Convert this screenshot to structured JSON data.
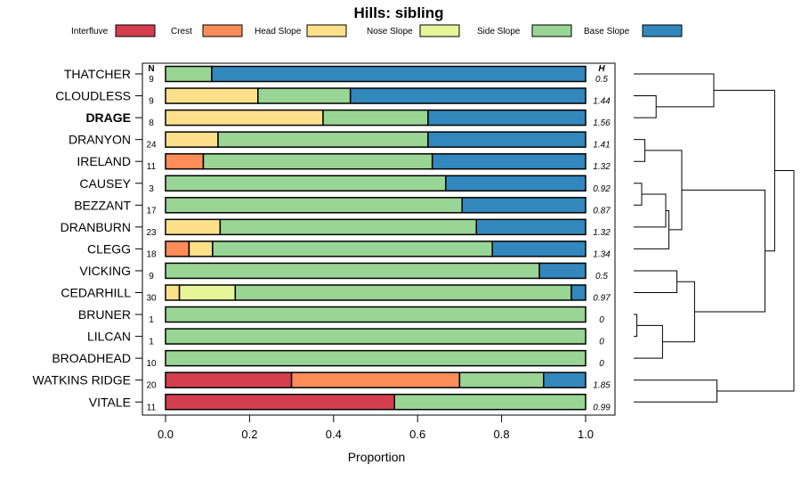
{
  "chart_data": {
    "type": "bar",
    "orientation": "horizontal",
    "stacked": true,
    "title": "Hills: sibling",
    "xlabel": "Proportion",
    "xlim": [
      0,
      1
    ],
    "xticks": [
      "0.0",
      "0.2",
      "0.4",
      "0.6",
      "0.8",
      "1.0"
    ],
    "n_header": "N",
    "h_header": "H",
    "legend": [
      {
        "name": "Interfluve",
        "color": "#d53e4f"
      },
      {
        "name": "Crest",
        "color": "#fc8d59"
      },
      {
        "name": "Head Slope",
        "color": "#fee08b"
      },
      {
        "name": "Nose Slope",
        "color": "#e6f598"
      },
      {
        "name": "Side Slope",
        "color": "#99d594"
      },
      {
        "name": "Base Slope",
        "color": "#3288bd"
      }
    ],
    "categories": [
      {
        "name": "THATCHER",
        "n": "9",
        "h": "0.5",
        "bold": false,
        "values": [
          0,
          0,
          0,
          0,
          0.11,
          0.89
        ]
      },
      {
        "name": "CLOUDLESS",
        "n": "9",
        "h": "1.44",
        "bold": false,
        "values": [
          0,
          0,
          0.22,
          0,
          0.22,
          0.56
        ]
      },
      {
        "name": "DRAGE",
        "n": "8",
        "h": "1.56",
        "bold": true,
        "values": [
          0,
          0,
          0.375,
          0,
          0.25,
          0.375
        ]
      },
      {
        "name": "DRANYON",
        "n": "24",
        "h": "1.41",
        "bold": false,
        "values": [
          0,
          0,
          0.125,
          0,
          0.5,
          0.375
        ]
      },
      {
        "name": "IRELAND",
        "n": "11",
        "h": "1.32",
        "bold": false,
        "values": [
          0,
          0.09,
          0,
          0,
          0.545,
          0.365
        ]
      },
      {
        "name": "CAUSEY",
        "n": "3",
        "h": "0.92",
        "bold": false,
        "values": [
          0,
          0,
          0,
          0,
          0.667,
          0.333
        ]
      },
      {
        "name": "BEZZANT",
        "n": "17",
        "h": "0.87",
        "bold": false,
        "values": [
          0,
          0,
          0,
          0,
          0.706,
          0.294
        ]
      },
      {
        "name": "DRANBURN",
        "n": "23",
        "h": "1.32",
        "bold": false,
        "values": [
          0,
          0,
          0.13,
          0,
          0.61,
          0.26
        ]
      },
      {
        "name": "CLEGG",
        "n": "18",
        "h": "1.34",
        "bold": false,
        "values": [
          0,
          0.056,
          0.056,
          0,
          0.666,
          0.222
        ]
      },
      {
        "name": "VICKING",
        "n": "9",
        "h": "0.5",
        "bold": false,
        "values": [
          0,
          0,
          0,
          0,
          0.89,
          0.11
        ]
      },
      {
        "name": "CEDARHILL",
        "n": "30",
        "h": "0.97",
        "bold": false,
        "values": [
          0,
          0,
          0.033,
          0.133,
          0.8,
          0.034
        ]
      },
      {
        "name": "BRUNER",
        "n": "1",
        "h": "0",
        "bold": false,
        "values": [
          0,
          0,
          0,
          0,
          1,
          0
        ]
      },
      {
        "name": "LILCAN",
        "n": "1",
        "h": "0",
        "bold": false,
        "values": [
          0,
          0,
          0,
          0,
          1,
          0
        ]
      },
      {
        "name": "BROADHEAD",
        "n": "10",
        "h": "0",
        "bold": false,
        "values": [
          0,
          0,
          0,
          0,
          1,
          0
        ]
      },
      {
        "name": "WATKINS RIDGE",
        "n": "20",
        "h": "1.85",
        "bold": false,
        "values": [
          0.3,
          0.4,
          0,
          0,
          0.2,
          0.1
        ]
      },
      {
        "name": "VITALE",
        "n": "11",
        "h": "0.99",
        "bold": false,
        "values": [
          0.545,
          0,
          0,
          0,
          0.455,
          0
        ]
      }
    ],
    "dendrogram": {
      "labels": [
        "THATCHER",
        "CLOUDLESS",
        "DRAGE",
        "DRANYON",
        "IRELAND",
        "CAUSEY",
        "BEZZANT",
        "DRANBURN",
        "CLEGG",
        "VICKING",
        "CEDARHILL",
        "BRUNER",
        "LILCAN",
        "BROADHEAD",
        "WATKINS RIDGE",
        "VITALE"
      ],
      "merge": [
        [
          -12,
          -13
        ],
        [
          -6,
          -7
        ],
        [
          -4,
          -5
        ],
        [
          -2,
          -3
        ],
        [
          1,
          -14
        ],
        [
          2,
          -8
        ],
        [
          6,
          -9
        ],
        [
          -10,
          -11
        ],
        [
          3,
          7
        ],
        [
          8,
          5
        ],
        [
          -1,
          4
        ],
        [
          -15,
          -16
        ],
        [
          9,
          10
        ],
        [
          11,
          13
        ],
        [
          14,
          12
        ]
      ],
      "height": [
        0.02,
        0.05,
        0.07,
        0.14,
        0.18,
        0.2,
        0.22,
        0.27,
        0.3,
        0.38,
        0.5,
        0.52,
        0.82,
        0.88,
        1.0
      ]
    }
  }
}
